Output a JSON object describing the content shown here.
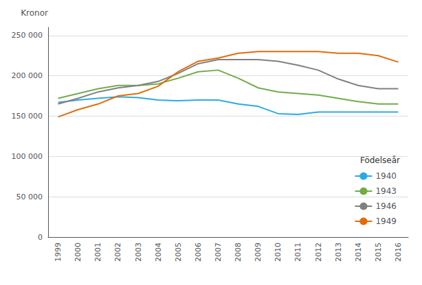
{
  "chart_data": {
    "type": "line",
    "categories": [
      "1999",
      "2000",
      "2001",
      "2002",
      "2003",
      "2004",
      "2005",
      "2006",
      "2007",
      "2008",
      "2009",
      "2010",
      "2011",
      "2012",
      "2013",
      "2014",
      "2015",
      "2016"
    ],
    "series": [
      {
        "name": "1940",
        "color": "#29abe2",
        "values": [
          167000,
          170000,
          172000,
          174000,
          173000,
          170000,
          169000,
          170000,
          170000,
          165000,
          162000,
          153000,
          152000,
          155000,
          155000,
          155000,
          155000,
          155000
        ]
      },
      {
        "name": "1943",
        "color": "#70ad47",
        "values": [
          172000,
          178000,
          184000,
          188000,
          188000,
          190000,
          197000,
          205000,
          207000,
          197000,
          185000,
          180000,
          178000,
          176000,
          172000,
          168000,
          165000,
          165000
        ]
      },
      {
        "name": "1946",
        "color": "#808080",
        "values": [
          165000,
          172000,
          180000,
          185000,
          188000,
          193000,
          203000,
          215000,
          220000,
          220000,
          220000,
          218000,
          213000,
          207000,
          196000,
          188000,
          184000,
          184000
        ]
      },
      {
        "name": "1949",
        "color": "#e36c09",
        "values": [
          149000,
          158000,
          165000,
          175000,
          178000,
          187000,
          205000,
          218000,
          222000,
          228000,
          230000,
          230000,
          230000,
          230000,
          228000,
          228000,
          225000,
          217000
        ]
      }
    ],
    "ylabel": "Kronor",
    "ylim": [
      0,
      260000
    ],
    "yticks": [
      0,
      {
        "value": 50000,
        "label": "50 000"
      },
      {
        "value": 100000,
        "label": "100 000"
      },
      {
        "value": 150000,
        "label": "150 000"
      },
      {
        "value": 200000,
        "label": "200 000"
      },
      {
        "value": 250000,
        "label": "250 000"
      }
    ],
    "legend_title": "Födelseår",
    "legend": "lower right",
    "grid": true
  }
}
